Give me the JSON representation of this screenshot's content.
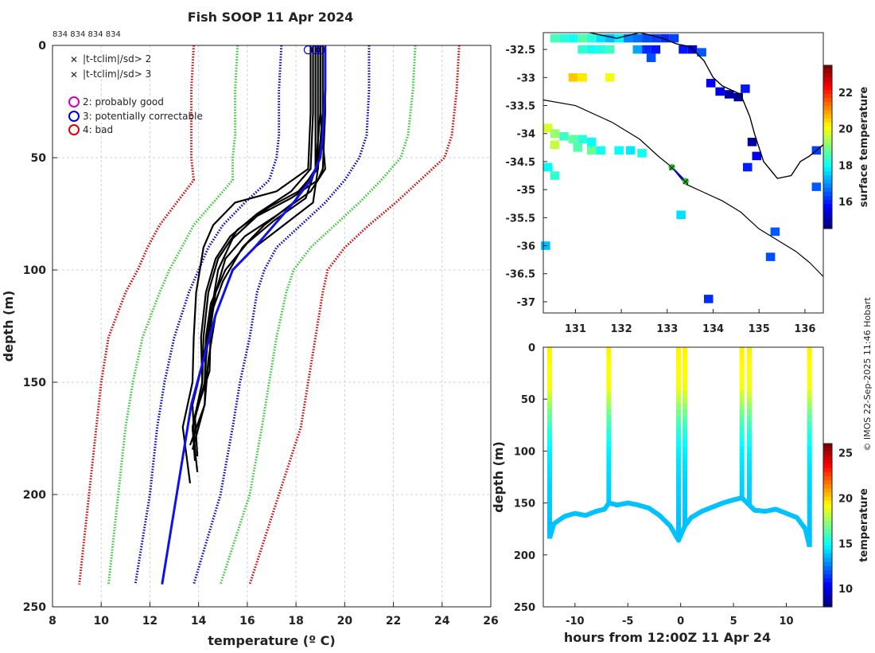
{
  "header": {
    "title": "Fish SOOP 11 Apr 2024",
    "ids": "834 834 834 834",
    "credit": "© IMOS 22-Sep-2025 11:46 Hobart"
  },
  "legend": {
    "items": [
      {
        "symbol": "×",
        "color": "#22cc22",
        "label": "|t-tclim|/sd> 2"
      },
      {
        "symbol": "×",
        "color": "#dd0000",
        "label": "|t-tclim|/sd> 3"
      },
      {
        "symbol": "○",
        "color": "#cc00cc",
        "label": "2: probably good"
      },
      {
        "symbol": "○",
        "color": "#0000dd",
        "label": "3: potentially correctable"
      },
      {
        "symbol": "○",
        "color": "#dd0000",
        "label": "4: bad"
      }
    ]
  },
  "colors": {
    "clim_1sd": "#0000cc",
    "clim_2sd": "#33cc33",
    "clim_3sd": "#dd0000",
    "mean": "#1111ee",
    "profiles": "#000000",
    "coast": "#000000",
    "track": "#0000ff"
  },
  "chart_data": [
    {
      "type": "line",
      "name": "temperature-profiles",
      "xlabel": "temperature (º C)",
      "ylabel": "depth (m)",
      "xlim": [
        8,
        26
      ],
      "ylim": [
        250,
        0
      ],
      "xticks": [
        8,
        10,
        12,
        14,
        16,
        18,
        20,
        22,
        24,
        26
      ],
      "yticks": [
        0,
        50,
        100,
        150,
        200,
        250
      ],
      "grid": true,
      "climatology": {
        "depth": [
          0,
          20,
          40,
          50,
          60,
          70,
          80,
          90,
          100,
          110,
          130,
          150,
          170,
          200,
          240
        ],
        "minus3sd": [
          13.8,
          13.7,
          13.7,
          13.7,
          13.8,
          13.1,
          12.4,
          11.9,
          11.5,
          11.0,
          10.3,
          10.0,
          9.8,
          9.5,
          9.1
        ],
        "minus2sd": [
          15.6,
          15.5,
          15.5,
          15.4,
          15.4,
          14.6,
          13.8,
          13.3,
          12.8,
          12.4,
          11.7,
          11.3,
          11.0,
          10.7,
          10.3
        ],
        "minus1sd": [
          17.4,
          17.3,
          17.3,
          17.2,
          16.9,
          15.9,
          15.0,
          14.4,
          14.0,
          13.6,
          13.0,
          12.6,
          12.3,
          12.0,
          11.4
        ],
        "plus1sd": [
          21.0,
          21.0,
          20.9,
          20.6,
          20.0,
          19.2,
          18.2,
          17.2,
          16.7,
          16.4,
          16.1,
          15.7,
          15.4,
          14.9,
          13.8
        ],
        "plus2sd": [
          22.9,
          22.8,
          22.6,
          22.3,
          21.5,
          20.6,
          19.6,
          18.6,
          17.9,
          17.6,
          17.2,
          16.9,
          16.6,
          16.1,
          14.9
        ],
        "plus3sd": [
          24.7,
          24.6,
          24.4,
          24.1,
          23.1,
          22.1,
          21.0,
          20.0,
          19.3,
          19.1,
          18.8,
          18.5,
          18.2,
          17.3,
          16.1
        ]
      },
      "mean_profile": {
        "depth": [
          0,
          20,
          40,
          50,
          60,
          70,
          80,
          90,
          100,
          120,
          140,
          160,
          180,
          200,
          240
        ],
        "temperature": [
          19.2,
          19.2,
          19.1,
          19.0,
          18.6,
          17.9,
          17.1,
          16.3,
          15.4,
          14.7,
          14.2,
          13.7,
          13.4,
          13.1,
          12.5
        ]
      },
      "profiles": [
        {
          "depth": [
            0,
            30,
            55,
            65,
            70,
            80,
            90,
            110,
            130,
            150,
            170,
            195
          ],
          "temperature": [
            18.6,
            18.6,
            18.5,
            17.2,
            15.5,
            14.6,
            14.2,
            13.9,
            13.8,
            13.6,
            13.5,
            13.5
          ]
        },
        {
          "depth": [
            0,
            30,
            55,
            65,
            75,
            85,
            95,
            110,
            130,
            150,
            170,
            190
          ],
          "temperature": [
            18.7,
            18.7,
            18.6,
            17.8,
            16.4,
            15.3,
            14.7,
            14.3,
            14.1,
            14.0,
            13.9,
            13.8
          ]
        },
        {
          "depth": [
            0,
            30,
            55,
            68,
            78,
            88,
            100,
            115,
            130,
            150,
            170,
            185
          ],
          "temperature": [
            18.8,
            18.8,
            18.8,
            18.4,
            17.1,
            16.0,
            15.1,
            14.5,
            14.3,
            14.1,
            13.9,
            13.7
          ]
        },
        {
          "depth": [
            0,
            30,
            55,
            70,
            80,
            90,
            100,
            120,
            140,
            160,
            180
          ],
          "temperature": [
            18.9,
            18.9,
            18.9,
            18.7,
            17.5,
            16.3,
            15.4,
            14.7,
            14.4,
            14.1,
            13.9
          ]
        },
        {
          "depth": [
            0,
            30,
            55,
            70,
            80,
            90,
            105,
            120,
            140,
            160,
            178
          ],
          "temperature": [
            19.0,
            19.0,
            18.8,
            17.9,
            16.7,
            15.8,
            15.0,
            14.5,
            14.3,
            14.1,
            13.8
          ]
        },
        {
          "depth": [
            0,
            30,
            55,
            65,
            72,
            82,
            95,
            110,
            130,
            150,
            172
          ],
          "temperature": [
            19.1,
            19.1,
            18.9,
            18.1,
            16.9,
            15.6,
            14.8,
            14.4,
            14.2,
            14.0,
            13.9
          ]
        },
        {
          "depth": [
            0,
            30,
            55,
            65,
            75,
            85,
            95,
            110,
            125,
            145,
            165,
            183
          ],
          "temperature": [
            19.0,
            19.0,
            19.2,
            18.6,
            17.3,
            15.9,
            15.1,
            14.7,
            14.5,
            14.3,
            14.0,
            13.8
          ]
        },
        {
          "depth": [
            0,
            30,
            55,
            60,
            68,
            76,
            86,
            100,
            120,
            140,
            160,
            180
          ],
          "temperature": [
            19.2,
            19.2,
            19.1,
            18.9,
            17.8,
            16.4,
            15.4,
            14.8,
            14.5,
            14.2,
            13.9,
            13.7
          ]
        }
      ],
      "flags": [
        {
          "temperature": 18.5,
          "depth": 2
        },
        {
          "temperature": 18.8,
          "depth": 2
        },
        {
          "temperature": 19.0,
          "depth": 2
        }
      ]
    },
    {
      "type": "heatmap",
      "name": "surface-temperature-map",
      "colorbar_label": "surface temperature",
      "clim": [
        14.5,
        23.5
      ],
      "colorbar_ticks": [
        16,
        18,
        20,
        22
      ],
      "xlim": [
        130.3,
        136.4
      ],
      "ylim": [
        -37.2,
        -32.2
      ],
      "xticks": [
        131,
        132,
        133,
        134,
        135,
        136
      ],
      "yticks": [
        -32.5,
        -33,
        -33.5,
        -34,
        -34.5,
        -35,
        -35.5,
        -36,
        -36.5,
        -37
      ],
      "ship_track": {
        "lon": [
          133.1,
          133.4
        ],
        "lat": [
          -34.6,
          -34.85
        ]
      },
      "stations": [
        {
          "lon": 133.1,
          "lat": -34.6
        },
        {
          "lon": 133.4,
          "lat": -34.85
        }
      ],
      "shelf_line": {
        "lon": [
          130.3,
          131.0,
          131.8,
          132.4,
          132.8,
          133.1,
          133.4,
          133.8,
          134.2,
          134.6,
          135.0,
          135.4,
          135.8,
          136.1,
          136.4
        ],
        "lat": [
          -33.4,
          -33.5,
          -33.8,
          -34.1,
          -34.4,
          -34.6,
          -34.9,
          -35.05,
          -35.2,
          -35.4,
          -35.7,
          -35.9,
          -36.1,
          -36.3,
          -36.55
        ]
      },
      "coastline": {
        "lon": [
          131.3,
          131.9,
          132.4,
          132.9,
          133.2,
          133.5,
          133.8,
          134.0,
          134.2,
          134.6,
          134.8,
          134.9,
          135.1,
          135.3,
          135.4,
          135.7,
          135.9,
          136.1,
          136.4
        ],
        "lat": [
          -32.2,
          -32.3,
          -32.2,
          -32.3,
          -32.4,
          -32.45,
          -32.7,
          -33.0,
          -33.15,
          -33.3,
          -33.7,
          -34.0,
          -34.5,
          -34.7,
          -34.8,
          -34.75,
          -34.5,
          -34.4,
          -34.2
        ]
      },
      "sst_cells": [
        {
          "lon": 130.55,
          "lat": -32.3,
          "v": 18.5
        },
        {
          "lon": 130.75,
          "lat": -32.3,
          "v": 18.2
        },
        {
          "lon": 130.95,
          "lat": -32.3,
          "v": 18.0
        },
        {
          "lon": 131.15,
          "lat": -32.3,
          "v": 18.6
        },
        {
          "lon": 131.35,
          "lat": -32.3,
          "v": 18.2
        },
        {
          "lon": 131.55,
          "lat": -32.3,
          "v": 17.6
        },
        {
          "lon": 131.75,
          "lat": -32.3,
          "v": 17.3
        },
        {
          "lon": 131.95,
          "lat": -32.3,
          "v": 17.8
        },
        {
          "lon": 132.15,
          "lat": -32.3,
          "v": 16.8
        },
        {
          "lon": 132.35,
          "lat": -32.3,
          "v": 16.6
        },
        {
          "lon": 132.55,
          "lat": -32.3,
          "v": 16.3
        },
        {
          "lon": 132.75,
          "lat": -32.3,
          "v": 16.2
        },
        {
          "lon": 132.95,
          "lat": -32.3,
          "v": 16.0
        },
        {
          "lon": 133.15,
          "lat": -32.3,
          "v": 16.2
        },
        {
          "lon": 131.15,
          "lat": -32.5,
          "v": 18.3
        },
        {
          "lon": 131.35,
          "lat": -32.5,
          "v": 18.0
        },
        {
          "lon": 131.55,
          "lat": -32.5,
          "v": 18.1
        },
        {
          "lon": 131.75,
          "lat": -32.5,
          "v": 18.4
        },
        {
          "lon": 132.35,
          "lat": -32.5,
          "v": 17.1
        },
        {
          "lon": 132.55,
          "lat": -32.5,
          "v": 16.0
        },
        {
          "lon": 132.75,
          "lat": -32.5,
          "v": 15.8
        },
        {
          "lon": 133.35,
          "lat": -32.5,
          "v": 15.8
        },
        {
          "lon": 133.55,
          "lat": -32.5,
          "v": 15.4
        },
        {
          "lon": 133.75,
          "lat": -32.55,
          "v": 16.4
        },
        {
          "lon": 132.65,
          "lat": -32.65,
          "v": 16.3
        },
        {
          "lon": 130.95,
          "lat": -33.0,
          "v": 20.6
        },
        {
          "lon": 131.15,
          "lat": -33.0,
          "v": 20.3
        },
        {
          "lon": 131.75,
          "lat": -33.0,
          "v": 20.0
        },
        {
          "lon": 133.95,
          "lat": -33.1,
          "v": 15.6
        },
        {
          "lon": 134.15,
          "lat": -33.25,
          "v": 15.4
        },
        {
          "lon": 134.35,
          "lat": -33.3,
          "v": 14.9
        },
        {
          "lon": 134.55,
          "lat": -33.35,
          "v": 14.7
        },
        {
          "lon": 134.7,
          "lat": -33.2,
          "v": 15.8
        },
        {
          "lon": 130.4,
          "lat": -33.9,
          "v": 19.8
        },
        {
          "lon": 130.55,
          "lat": -34.0,
          "v": 19.2
        },
        {
          "lon": 130.75,
          "lat": -34.05,
          "v": 18.4
        },
        {
          "lon": 130.95,
          "lat": -34.1,
          "v": 18.7
        },
        {
          "lon": 131.15,
          "lat": -34.1,
          "v": 18.2
        },
        {
          "lon": 131.35,
          "lat": -34.15,
          "v": 17.9
        },
        {
          "lon": 130.55,
          "lat": -34.2,
          "v": 19.6
        },
        {
          "lon": 131.05,
          "lat": -34.25,
          "v": 18.6
        },
        {
          "lon": 131.35,
          "lat": -34.3,
          "v": 18.8
        },
        {
          "lon": 131.55,
          "lat": -34.3,
          "v": 18.0
        },
        {
          "lon": 131.95,
          "lat": -34.3,
          "v": 17.9
        },
        {
          "lon": 132.2,
          "lat": -34.3,
          "v": 17.7
        },
        {
          "lon": 132.45,
          "lat": -34.35,
          "v": 18.0
        },
        {
          "lon": 130.4,
          "lat": -34.6,
          "v": 17.9
        },
        {
          "lon": 130.55,
          "lat": -34.75,
          "v": 18.3
        },
        {
          "lon": 134.85,
          "lat": -34.15,
          "v": 14.8
        },
        {
          "lon": 134.95,
          "lat": -34.4,
          "v": 15.5
        },
        {
          "lon": 134.75,
          "lat": -34.6,
          "v": 15.9
        },
        {
          "lon": 136.25,
          "lat": -34.3,
          "v": 16.2
        },
        {
          "lon": 136.25,
          "lat": -34.95,
          "v": 16.4
        },
        {
          "lon": 133.3,
          "lat": -35.45,
          "v": 17.6
        },
        {
          "lon": 135.35,
          "lat": -35.75,
          "v": 16.4
        },
        {
          "lon": 130.35,
          "lat": -36.0,
          "v": 17.3
        },
        {
          "lon": 135.25,
          "lat": -36.2,
          "v": 16.3
        },
        {
          "lon": 133.9,
          "lat": -36.95,
          "v": 16.0
        }
      ]
    },
    {
      "type": "heatmap",
      "name": "depth-time-section",
      "xlabel": "hours from 12:00Z 11 Apr 24",
      "ylabel": "depth (m)",
      "colorbar_label": "temperature",
      "clim": [
        8,
        26
      ],
      "colorbar_ticks": [
        10,
        15,
        20,
        25
      ],
      "xlim": [
        -13,
        13.5
      ],
      "ylim": [
        250,
        0
      ],
      "xticks": [
        -10,
        -5,
        0,
        5,
        10
      ],
      "yticks": [
        0,
        50,
        100,
        150,
        200,
        250
      ],
      "casts": [
        {
          "hour": -12.4,
          "max_depth": 184
        },
        {
          "hour": -6.8,
          "max_depth": 150
        },
        {
          "hour": -0.2,
          "max_depth": 186
        },
        {
          "hour": 0.4,
          "max_depth": 172
        },
        {
          "hour": 5.8,
          "max_depth": 145
        },
        {
          "hour": 6.5,
          "max_depth": 152
        },
        {
          "hour": 12.2,
          "max_depth": 192
        }
      ],
      "bottom_trace": {
        "hour": [
          -12.4,
          -12.0,
          -11.0,
          -10.0,
          -9.0,
          -8.0,
          -7.2,
          -6.8,
          -6.0,
          -5.0,
          -4.0,
          -3.0,
          -2.0,
          -1.0,
          -0.2,
          0.4,
          1.0,
          2.0,
          3.0,
          4.0,
          5.0,
          5.8,
          6.5,
          7.0,
          8.0,
          9.0,
          10.0,
          11.0,
          11.8,
          12.2
        ],
        "depth": [
          184,
          170,
          163,
          160,
          162,
          158,
          156,
          150,
          152,
          150,
          152,
          155,
          162,
          172,
          186,
          172,
          164,
          158,
          154,
          150,
          147,
          145,
          152,
          157,
          158,
          156,
          160,
          164,
          175,
          192
        ]
      },
      "profile_color_bands": {
        "depth": [
          0,
          40,
          60,
          80,
          100,
          130,
          190
        ],
        "temperature": [
          19.5,
          19.0,
          17.0,
          15.5,
          14.5,
          14.0,
          13.5
        ]
      }
    }
  ]
}
